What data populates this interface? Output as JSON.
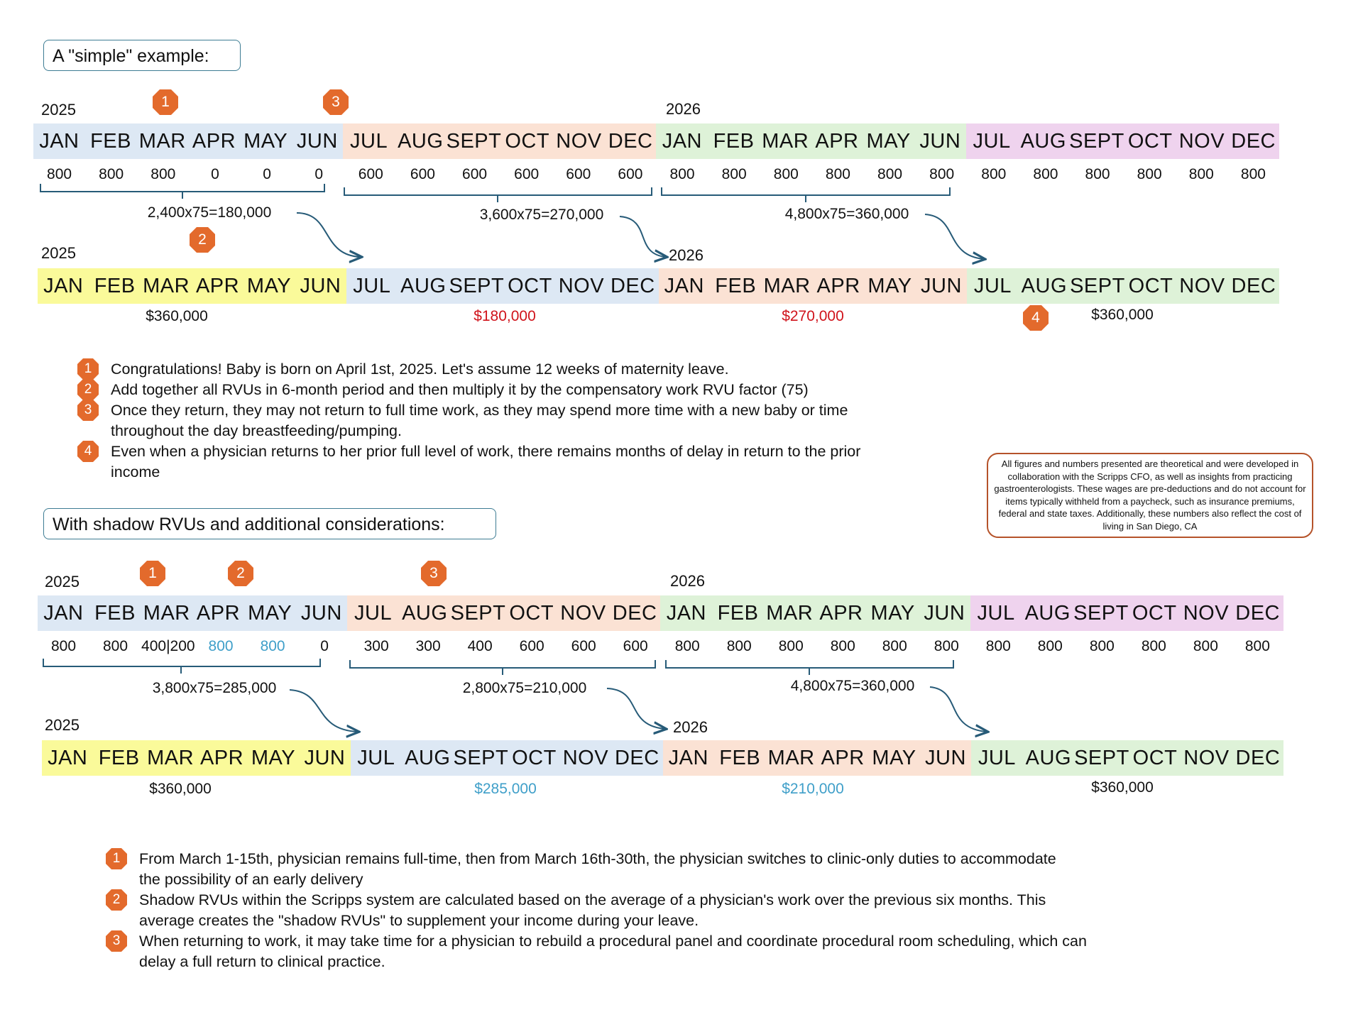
{
  "colors": {
    "blue": "#dde8f4",
    "peach": "#fbe2d4",
    "green": "#def2d8",
    "pink": "#efd3ee",
    "yellow": "#fafa9a",
    "badge": "#e36a2c",
    "red": "#d0131b",
    "teal": "#3f9fc9",
    "bracket": "#275b78"
  },
  "section1": {
    "label": "A \"simple\" example:",
    "row1_years": [
      "2025",
      "2026"
    ],
    "row1_months": [
      "JAN",
      "FEB",
      "MAR",
      "APR",
      "MAY",
      "JUN",
      "JUL",
      "AUG",
      "SEPT",
      "OCT",
      "NOV",
      "DEC",
      "JAN",
      "FEB",
      "MAR",
      "APR",
      "MAY",
      "JUN",
      "JUL",
      "AUG",
      "SEPT",
      "OCT",
      "NOV",
      "DEC"
    ],
    "row1_values": [
      "800",
      "800",
      "800",
      "0",
      "0",
      "0",
      "600",
      "600",
      "600",
      "600",
      "600",
      "600",
      "800",
      "800",
      "800",
      "800",
      "800",
      "800",
      "800",
      "800",
      "800",
      "800",
      "800",
      "800"
    ],
    "formulas": [
      "2,400x75=180,000",
      "3,600x75=270,000",
      "4,800x75=360,000"
    ],
    "row2_years": [
      "2025",
      "2026"
    ],
    "row2_months": [
      "JAN",
      "FEB",
      "MAR",
      "APR",
      "MAY",
      "JUN",
      "JUL",
      "AUG",
      "SEPT",
      "OCT",
      "NOV",
      "DEC",
      "JAN",
      "FEB",
      "MAR",
      "APR",
      "MAY",
      "JUN",
      "JUL",
      "AUG",
      "SEPT",
      "OCT",
      "NOV",
      "DEC"
    ],
    "amounts": [
      "$360,000",
      "$180,000",
      "$270,000",
      "$360,000"
    ],
    "badges": [
      "1",
      "3",
      "2",
      "4"
    ],
    "notes": [
      {
        "n": "1",
        "text": "Congratulations! Baby is born on April 1st, 2025. Let's assume 12 weeks of maternity leave."
      },
      {
        "n": "2",
        "text": "Add together all RVUs in 6-month period and then multiply it by the compensatory work RVU factor (75)"
      },
      {
        "n": "3",
        "text": "Once they return, they may not return to full time work, as they may spend more time with a new baby or time throughout the day breastfeeding/pumping."
      },
      {
        "n": "4",
        "text": "Even when a physician returns to her prior full level of work, there remains months of delay in return to the prior income"
      }
    ]
  },
  "disclaimer": "All figures and numbers presented are theoretical and were developed in collaboration with the Scripps CFO, as well as insights from practicing gastroenterologists. These wages are pre-deductions and do not account for items typically withheld from a paycheck, such as insurance premiums, federal and state taxes. Additionally, these numbers also reflect the cost of living in San Diego, CA",
  "section2": {
    "label": "With shadow RVUs and additional considerations:",
    "row1_years": [
      "2025",
      "2026"
    ],
    "row1_months": [
      "JAN",
      "FEB",
      "MAR",
      "APR",
      "MAY",
      "JUN",
      "JUL",
      "AUG",
      "SEPT",
      "OCT",
      "NOV",
      "DEC",
      "JAN",
      "FEB",
      "MAR",
      "APR",
      "MAY",
      "JUN",
      "JUL",
      "AUG",
      "SEPT",
      "OCT",
      "NOV",
      "DEC"
    ],
    "row1_values": [
      "800",
      "800",
      "400|200",
      "800",
      "800",
      "0",
      "300",
      "300",
      "400",
      "600",
      "600",
      "600",
      "800",
      "800",
      "800",
      "800",
      "800",
      "800",
      "800",
      "800",
      "800",
      "800",
      "800",
      "800"
    ],
    "formulas": [
      "3,800x75=285,000",
      "2,800x75=210,000",
      "4,800x75=360,000"
    ],
    "row2_years": [
      "2025",
      "2026"
    ],
    "row2_months": [
      "JAN",
      "FEB",
      "MAR",
      "APR",
      "MAY",
      "JUN",
      "JUL",
      "AUG",
      "SEPT",
      "OCT",
      "NOV",
      "DEC",
      "JAN",
      "FEB",
      "MAR",
      "APR",
      "MAY",
      "JUN",
      "JUL",
      "AUG",
      "SEPT",
      "OCT",
      "NOV",
      "DEC"
    ],
    "amounts": [
      "$360,000",
      "$285,000",
      "$210,000",
      "$360,000"
    ],
    "badges": [
      "1",
      "2",
      "3"
    ],
    "notes": [
      {
        "n": "1",
        "text": "From March 1-15th, physician remains full-time, then from March 16th-30th, the physician switches to clinic-only duties to accommodate the possibility of an early delivery"
      },
      {
        "n": "2",
        "text": "Shadow RVUs within the Scripps system are calculated based on the average of a physician's work over the previous six months. This average creates the \"shadow RVUs\" to supplement your income during your leave."
      },
      {
        "n": "3",
        "text": "When returning to work, it may take time for a physician to rebuild a procedural panel and coordinate procedural room scheduling, which can delay a full return to clinical practice."
      }
    ]
  }
}
